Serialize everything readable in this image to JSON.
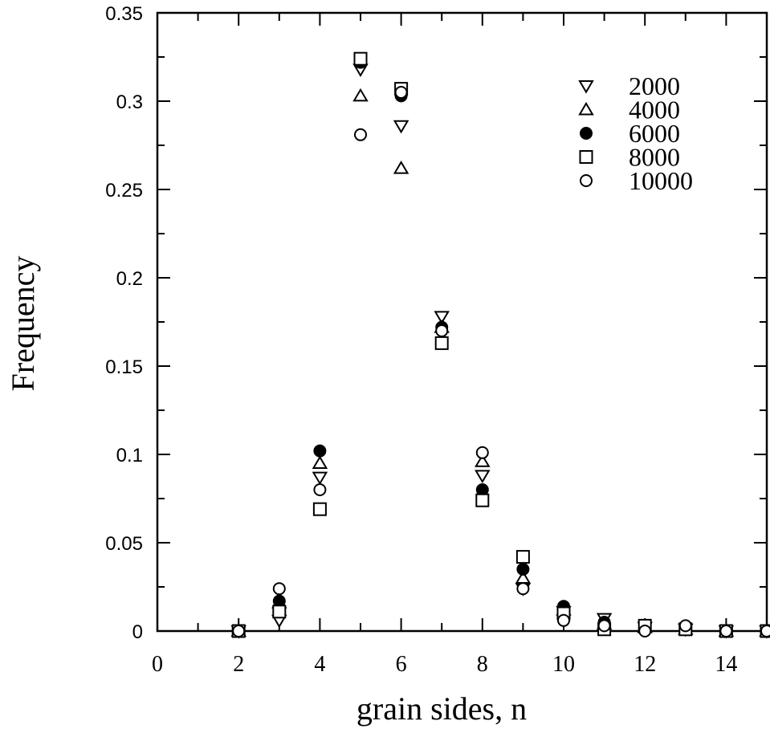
{
  "chart_data": {
    "type": "scatter",
    "title": "",
    "xlabel": "grain sides, n",
    "ylabel": "Frequency",
    "xlim": [
      0,
      15
    ],
    "ylim": [
      0,
      0.35
    ],
    "x_ticks": [
      0,
      2,
      4,
      6,
      8,
      10,
      12,
      14
    ],
    "y_ticks": [
      "0",
      "0.05",
      "0.1",
      "0.15",
      "0.2",
      "0.25",
      "0.3",
      "0.35"
    ],
    "grid": false,
    "legend_position": "top-right",
    "series": [
      {
        "name": "2000",
        "marker": "triangle-down-open",
        "points": [
          [
            2,
            0
          ],
          [
            3,
            0.006
          ],
          [
            4,
            0.087
          ],
          [
            5,
            0.318
          ],
          [
            6,
            0.286
          ],
          [
            7,
            0.178
          ],
          [
            8,
            0.088
          ],
          [
            9,
            0.024
          ],
          [
            10,
            0.011
          ],
          [
            11,
            0.007
          ],
          [
            12,
            0.002
          ],
          [
            13,
            0.001
          ],
          [
            14,
            0.0
          ],
          [
            15,
            0.0
          ]
        ]
      },
      {
        "name": "4000",
        "marker": "triangle-up-open",
        "points": [
          [
            2,
            0
          ],
          [
            3,
            0.016
          ],
          [
            4,
            0.095
          ],
          [
            5,
            0.303
          ],
          [
            6,
            0.262
          ],
          [
            7,
            0.172
          ],
          [
            8,
            0.096
          ],
          [
            9,
            0.03
          ],
          [
            10,
            0.012
          ],
          [
            11,
            0.004
          ],
          [
            12,
            0.002
          ],
          [
            13,
            0.001
          ],
          [
            14,
            0.0
          ],
          [
            15,
            0.0
          ]
        ]
      },
      {
        "name": "6000",
        "marker": "circle-filled",
        "points": [
          [
            2,
            0
          ],
          [
            3,
            0.017
          ],
          [
            4,
            0.102
          ],
          [
            5,
            0.322
          ],
          [
            6,
            0.303
          ],
          [
            7,
            0.172
          ],
          [
            8,
            0.08
          ],
          [
            9,
            0.035
          ],
          [
            10,
            0.014
          ],
          [
            11,
            0.005
          ],
          [
            12,
            0.001
          ],
          [
            13,
            0.002
          ],
          [
            14,
            0.0
          ],
          [
            15,
            0.0
          ]
        ]
      },
      {
        "name": "8000",
        "marker": "square-open",
        "points": [
          [
            2,
            0
          ],
          [
            3,
            0.011
          ],
          [
            4,
            0.069
          ],
          [
            5,
            0.324
          ],
          [
            6,
            0.307
          ],
          [
            7,
            0.163
          ],
          [
            8,
            0.074
          ],
          [
            9,
            0.042
          ],
          [
            10,
            0.01
          ],
          [
            11,
            0.001
          ],
          [
            12,
            0.003
          ],
          [
            13,
            0.001
          ],
          [
            14,
            0.0
          ],
          [
            15,
            0.0
          ]
        ]
      },
      {
        "name": "10000",
        "marker": "circle-open",
        "points": [
          [
            2,
            0
          ],
          [
            3,
            0.024
          ],
          [
            4,
            0.08
          ],
          [
            5,
            0.281
          ],
          [
            6,
            0.305
          ],
          [
            7,
            0.17
          ],
          [
            8,
            0.101
          ],
          [
            9,
            0.024
          ],
          [
            10,
            0.006
          ],
          [
            11,
            0.003
          ],
          [
            12,
            0.0
          ],
          [
            13,
            0.003
          ],
          [
            14,
            0.0
          ],
          [
            15,
            0.0
          ]
        ]
      }
    ]
  }
}
